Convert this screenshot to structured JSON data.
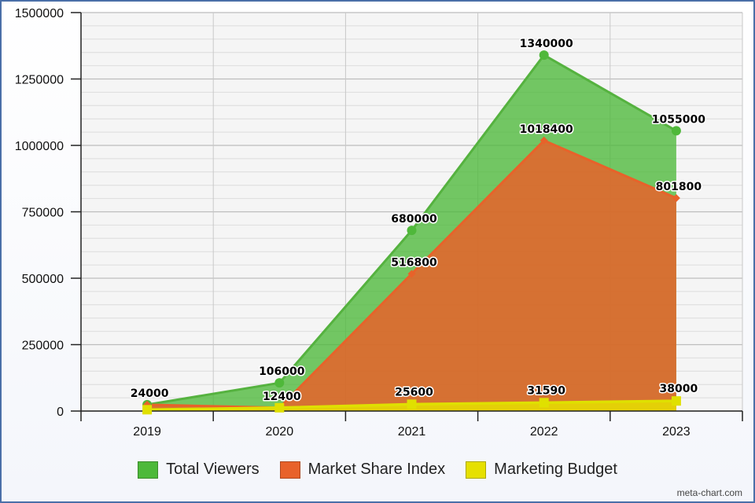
{
  "chart_data": {
    "type": "area",
    "categories": [
      "2019",
      "2020",
      "2021",
      "2022",
      "2023"
    ],
    "series": [
      {
        "name": "Total Viewers",
        "values": [
          24000,
          106000,
          680000,
          1340000,
          1055000
        ],
        "color": "#4db93a",
        "line_color": "#55b23f",
        "marker": "circle"
      },
      {
        "name": "Market Share Index",
        "values": [
          24000,
          12400,
          516800,
          1018400,
          801800
        ],
        "color": "#e8622a",
        "line_color": "#e8622a",
        "marker": "diamond"
      },
      {
        "name": "Marketing Budget",
        "values": [
          5000,
          12400,
          25600,
          31590,
          38000
        ],
        "color": "#e6e000",
        "line_color": "#dfe000",
        "marker": "square"
      }
    ],
    "data_labels": [
      [
        "24000",
        "106000",
        "680000",
        "1340000",
        "1055000"
      ],
      [
        "",
        "12400",
        "516800",
        "1018400",
        "801800"
      ],
      [
        "",
        "",
        "25600",
        "31590",
        "38000"
      ]
    ],
    "y_ticks": [
      "0",
      "250000",
      "500000",
      "750000",
      "1000000",
      "1250000",
      "1500000"
    ],
    "ylim": [
      0,
      1500000
    ],
    "y_step": 250000,
    "title": "",
    "xlabel": "",
    "ylabel": "",
    "grid": true,
    "legend_position": "bottom"
  },
  "watermark": "meta-chart.com"
}
